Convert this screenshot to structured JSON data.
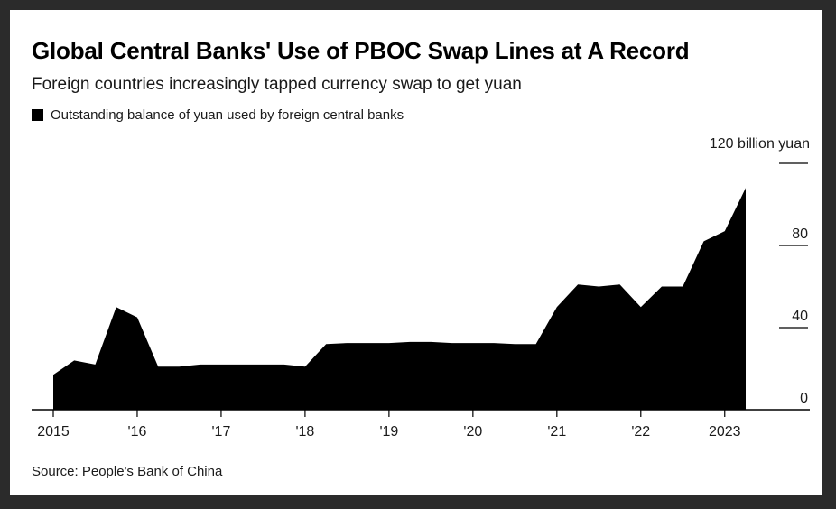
{
  "title": "Global Central Banks' Use of PBOC Swap Lines at A Record",
  "subtitle": "Foreign countries increasingly tapped currency swap to get yuan",
  "source": "Source: People's Bank of China",
  "colors": {
    "area": "#000000",
    "background": "#ffffff",
    "frame": "#2b2b2b"
  },
  "chart_data": {
    "type": "area",
    "unit_label": "120 billion yuan",
    "x": [
      2015.0,
      2015.25,
      2015.5,
      2015.75,
      2016.0,
      2016.25,
      2016.5,
      2016.75,
      2017.0,
      2017.25,
      2017.5,
      2017.75,
      2018.0,
      2018.25,
      2018.5,
      2018.75,
      2019.0,
      2019.25,
      2019.5,
      2019.75,
      2020.0,
      2020.25,
      2020.5,
      2020.75,
      2021.0,
      2021.25,
      2021.5,
      2021.75,
      2022.0,
      2022.25,
      2022.5,
      2022.75,
      2023.0,
      2023.25
    ],
    "series": [
      {
        "values": [
          17,
          24,
          22,
          50,
          45,
          21,
          21,
          22,
          22,
          22,
          22,
          22,
          21,
          32,
          32.5,
          32.5,
          32.5,
          33,
          33,
          32.5,
          32.5,
          32.5,
          32,
          32,
          50,
          61,
          60,
          61,
          50,
          60,
          60,
          82,
          87,
          108
        ]
      }
    ],
    "x_ticks": [
      {
        "value": 2015,
        "label": "2015"
      },
      {
        "value": 2016,
        "label": "'16"
      },
      {
        "value": 2017,
        "label": "'17"
      },
      {
        "value": 2018,
        "label": "'18"
      },
      {
        "value": 2019,
        "label": "'19"
      },
      {
        "value": 2020,
        "label": "'20"
      },
      {
        "value": 2021,
        "label": "'21"
      },
      {
        "value": 2022,
        "label": "'22"
      },
      {
        "value": 2023,
        "label": "2023"
      }
    ],
    "y_ticks": [
      {
        "value": 0,
        "label": "0"
      },
      {
        "value": 40,
        "label": "40"
      },
      {
        "value": 80,
        "label": "80"
      },
      {
        "value": 120,
        "label": ""
      }
    ],
    "ylim": [
      0,
      120
    ],
    "xlim": [
      2015,
      2023.25
    ],
    "legend": [
      "Outstanding balance of yuan used by foreign central banks"
    ],
    "legend_position": "top-left",
    "y_axis_side": "right",
    "grid": false
  }
}
